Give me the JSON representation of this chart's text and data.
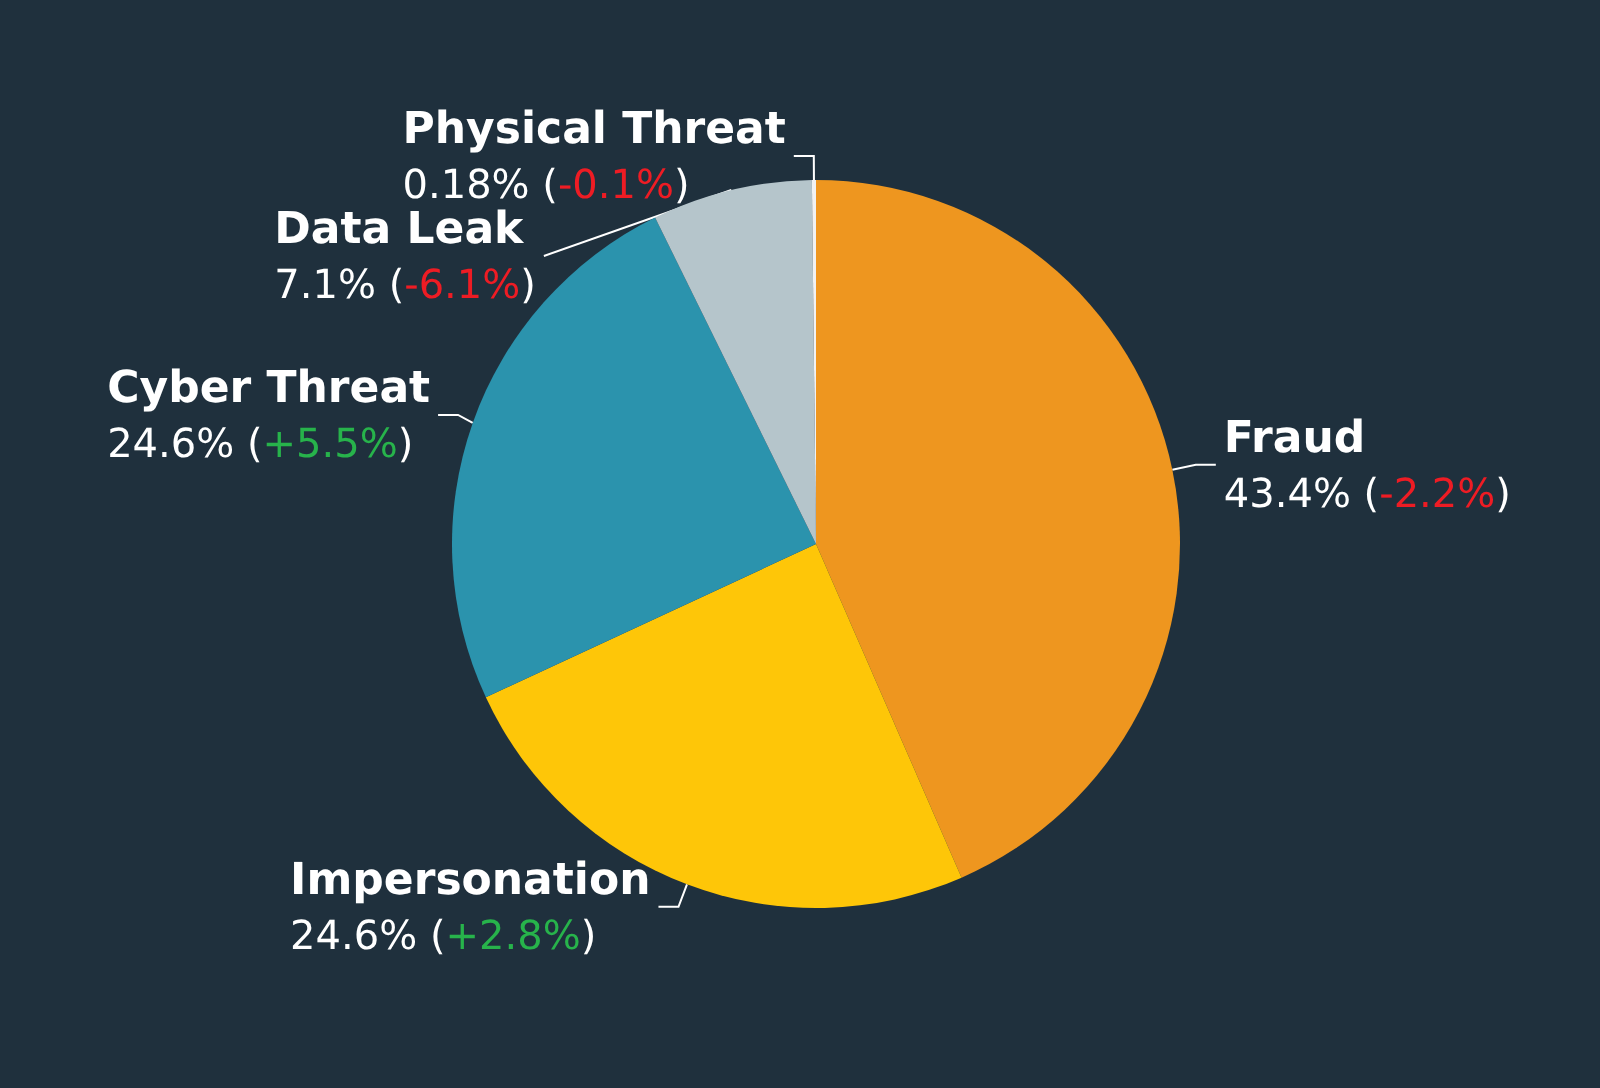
{
  "chart_data": {
    "type": "pie",
    "categories": [
      "Fraud",
      "Impersonation",
      "Cyber Threat",
      "Data Leak",
      "Physical Threat"
    ],
    "values": [
      43.4,
      24.6,
      24.6,
      7.1,
      0.18
    ],
    "colors": [
      "#ee961f",
      "#fec608",
      "#2b93ad",
      "#b5c5cb",
      "#f2f2f2"
    ],
    "value_labels": [
      "43.4% (-2.2%)",
      "24.6% (+2.8%)",
      "24.6% (+5.5%)",
      "7.1% (-6.1%)",
      "0.18% (-0.1%)"
    ],
    "legend": false
  }
}
